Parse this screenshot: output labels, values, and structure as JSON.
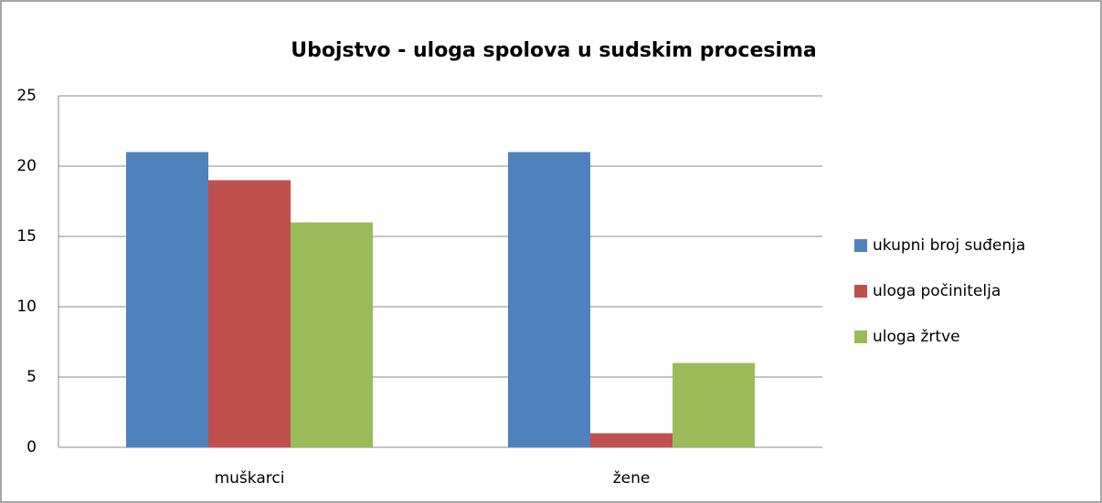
{
  "chart_data": {
    "type": "bar",
    "title": "Ubojstvo - uloga spolova u sudskim procesima",
    "categories": [
      "muškarci",
      "žene"
    ],
    "series": [
      {
        "name": "ukupni broj suđenja",
        "color": "#4f81bd",
        "values": [
          21,
          21
        ]
      },
      {
        "name": "uloga počinitelja",
        "color": "#c0504d",
        "values": [
          19,
          1
        ]
      },
      {
        "name": "uloga žrtve",
        "color": "#9bbb59",
        "values": [
          16,
          6
        ]
      }
    ],
    "ylim": [
      0,
      25
    ],
    "yticks": [
      0,
      5,
      10,
      15,
      20,
      25
    ],
    "grid": true,
    "legend": "right"
  }
}
